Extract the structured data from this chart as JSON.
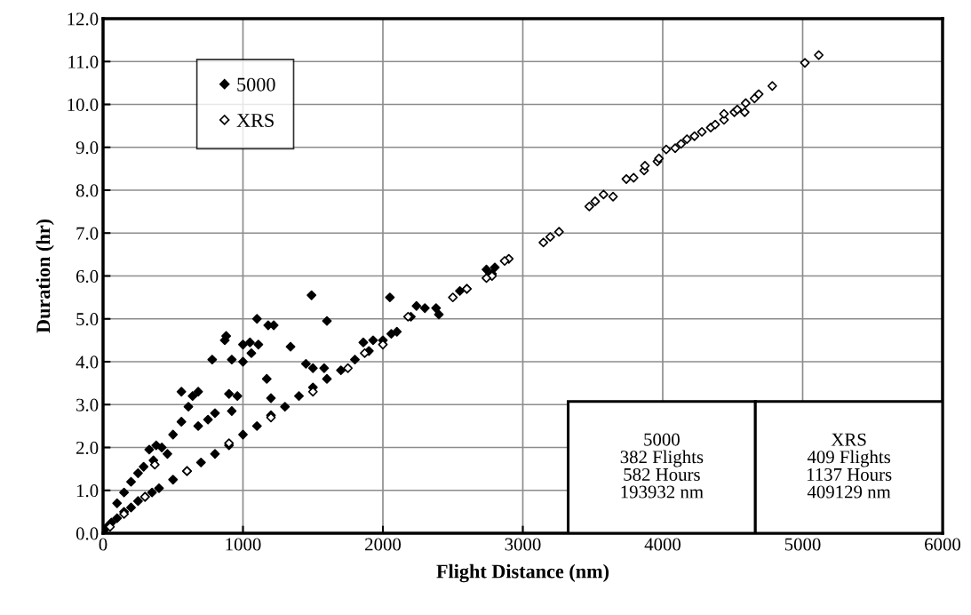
{
  "chart_data": {
    "type": "scatter",
    "xlabel": "Flight Distance (nm)",
    "ylabel": "Duration (hr)",
    "xlim": [
      0,
      6000
    ],
    "xticks": [
      0,
      1000,
      2000,
      3000,
      4000,
      5000,
      6000
    ],
    "ylim": [
      0,
      12
    ],
    "yticks": [
      {
        "value": 0,
        "label": "0.0"
      },
      {
        "value": 1,
        "label": "1.0"
      },
      {
        "value": 2,
        "label": "2.0"
      },
      {
        "value": 3,
        "label": "3.0"
      },
      {
        "value": 4,
        "label": "4.0"
      },
      {
        "value": 5,
        "label": "5.0"
      },
      {
        "value": 6,
        "label": "6.0"
      },
      {
        "value": 7,
        "label": "7.0"
      },
      {
        "value": 8,
        "label": "8.0"
      },
      {
        "value": 9,
        "label": "9.0"
      },
      {
        "value": 10,
        "label": "10.0"
      },
      {
        "value": 11,
        "label": "11.0"
      },
      {
        "value": 12,
        "label": "12.0"
      }
    ],
    "grid": true,
    "legend": "top left",
    "marker": "diamond",
    "annotations": [
      "5000\n382 Flights\n582 Hours\n193932 nm",
      "XRS\n409 Flights\n1137 Hours\n409129 nm"
    ],
    "series": [
      {
        "name": "5000",
        "color": "#000000",
        "x": [
          1490,
          2050,
          1100,
          1180,
          1220,
          880,
          870,
          1050,
          1000,
          1110,
          1600,
          1340,
          780,
          920,
          1000,
          1060,
          1170,
          1930,
          1860,
          1450,
          1500,
          1580,
          680,
          640,
          560,
          900,
          960,
          1200,
          610,
          750,
          560,
          680,
          800,
          920,
          500,
          380,
          420,
          330,
          460,
          360,
          290,
          250,
          200,
          150,
          100,
          2240,
          2300,
          2380,
          2200,
          2060,
          2400,
          2550,
          2600,
          2740,
          2800,
          2780,
          0,
          30,
          60,
          100,
          150,
          200,
          250,
          300,
          350,
          400,
          500,
          600,
          700,
          800,
          900,
          1000,
          1100,
          1200,
          1300,
          1400,
          1500,
          1600,
          1700,
          1800,
          1900,
          2000,
          2100
        ],
        "values": [
          5.55,
          5.5,
          5.0,
          4.85,
          4.85,
          4.6,
          4.5,
          4.45,
          4.4,
          4.4,
          4.95,
          4.35,
          4.05,
          4.05,
          4.0,
          4.2,
          3.6,
          4.5,
          4.45,
          3.95,
          3.85,
          3.85,
          3.3,
          3.2,
          3.3,
          3.25,
          3.2,
          3.15,
          2.95,
          2.65,
          2.6,
          2.5,
          2.8,
          2.85,
          2.3,
          2.05,
          2.0,
          1.95,
          1.85,
          1.7,
          1.55,
          1.4,
          1.2,
          0.95,
          0.7,
          5.3,
          5.25,
          5.25,
          5.05,
          4.65,
          5.1,
          5.65,
          5.7,
          6.15,
          6.2,
          6.05,
          0.05,
          0.15,
          0.25,
          0.35,
          0.5,
          0.6,
          0.75,
          0.85,
          0.95,
          1.05,
          1.25,
          1.45,
          1.65,
          1.85,
          2.05,
          2.3,
          2.5,
          2.75,
          2.95,
          3.2,
          3.4,
          3.6,
          3.8,
          4.05,
          4.25,
          4.5,
          4.7
        ]
      },
      {
        "name": "XRS",
        "color": "#ffffff",
        "x": [
          3147,
          3196,
          3259,
          3475,
          3517,
          3577,
          3645,
          3740,
          3792,
          3867,
          3873,
          3962,
          3973,
          4025,
          4089,
          4131,
          4173,
          4227,
          4280,
          4343,
          4375,
          4438,
          4438,
          4512,
          4533,
          4586,
          4593,
          4656,
          4686,
          4783,
          5016,
          5115,
          2900,
          2870,
          2780,
          2740,
          2500,
          2600,
          2180,
          2000,
          1870,
          1750,
          1500,
          1200,
          900,
          600,
          370,
          300,
          150,
          50
        ],
        "values": [
          6.78,
          6.91,
          7.03,
          7.62,
          7.74,
          7.9,
          7.85,
          8.26,
          8.29,
          8.46,
          8.57,
          8.67,
          8.74,
          8.95,
          8.98,
          9.08,
          9.19,
          9.26,
          9.36,
          9.46,
          9.53,
          9.64,
          9.78,
          9.82,
          9.88,
          9.82,
          10.03,
          10.14,
          10.24,
          10.43,
          10.97,
          11.15,
          6.4,
          6.35,
          6.0,
          5.95,
          5.5,
          5.7,
          5.05,
          4.4,
          4.2,
          3.85,
          3.3,
          2.7,
          2.1,
          1.45,
          1.6,
          0.85,
          0.45,
          0.15
        ]
      }
    ]
  }
}
